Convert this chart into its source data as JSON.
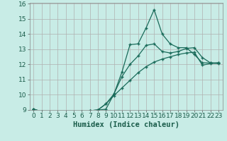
{
  "title": "",
  "xlabel": "Humidex (Indice chaleur)",
  "xlim": [
    -0.5,
    23.5
  ],
  "ylim": [
    9,
    16
  ],
  "yticks": [
    9,
    10,
    11,
    12,
    13,
    14,
    15,
    16
  ],
  "xticks": [
    0,
    1,
    2,
    3,
    4,
    5,
    6,
    7,
    8,
    9,
    10,
    11,
    12,
    13,
    14,
    15,
    16,
    17,
    18,
    19,
    20,
    21,
    22,
    23
  ],
  "bg_color": "#c8ece6",
  "grid_color": "#b0b0b0",
  "line_color": "#1a6b5a",
  "series1_x": [
    0,
    1,
    2,
    3,
    4,
    5,
    6,
    7,
    8,
    9,
    10,
    11,
    12,
    13,
    14,
    15,
    16,
    17,
    18,
    19,
    20,
    21,
    22,
    23
  ],
  "series1_y": [
    9.05,
    8.9,
    8.8,
    8.8,
    8.8,
    8.85,
    8.9,
    8.95,
    9.0,
    9.05,
    10.05,
    11.5,
    13.3,
    13.35,
    14.4,
    15.6,
    14.0,
    13.35,
    13.1,
    13.1,
    12.65,
    12.1,
    12.1,
    12.1
  ],
  "series2_x": [
    0,
    1,
    2,
    3,
    4,
    5,
    6,
    7,
    8,
    9,
    10,
    11,
    12,
    13,
    14,
    15,
    16,
    17,
    18,
    19,
    20,
    21,
    22,
    23
  ],
  "series2_y": [
    9.05,
    8.9,
    8.82,
    8.8,
    8.82,
    8.85,
    8.9,
    8.95,
    9.0,
    9.4,
    10.05,
    11.2,
    12.0,
    12.55,
    13.25,
    13.35,
    12.85,
    12.75,
    12.85,
    13.05,
    13.1,
    12.45,
    12.1,
    12.05
  ],
  "series3_x": [
    0,
    1,
    2,
    3,
    4,
    5,
    6,
    7,
    8,
    9,
    10,
    11,
    12,
    13,
    14,
    15,
    16,
    17,
    18,
    19,
    20,
    21,
    22,
    23
  ],
  "series3_y": [
    9.05,
    8.9,
    8.82,
    8.8,
    8.82,
    8.85,
    8.9,
    8.95,
    9.0,
    9.4,
    9.95,
    10.45,
    10.95,
    11.45,
    11.85,
    12.15,
    12.35,
    12.5,
    12.65,
    12.75,
    12.8,
    11.95,
    12.05,
    12.1
  ]
}
